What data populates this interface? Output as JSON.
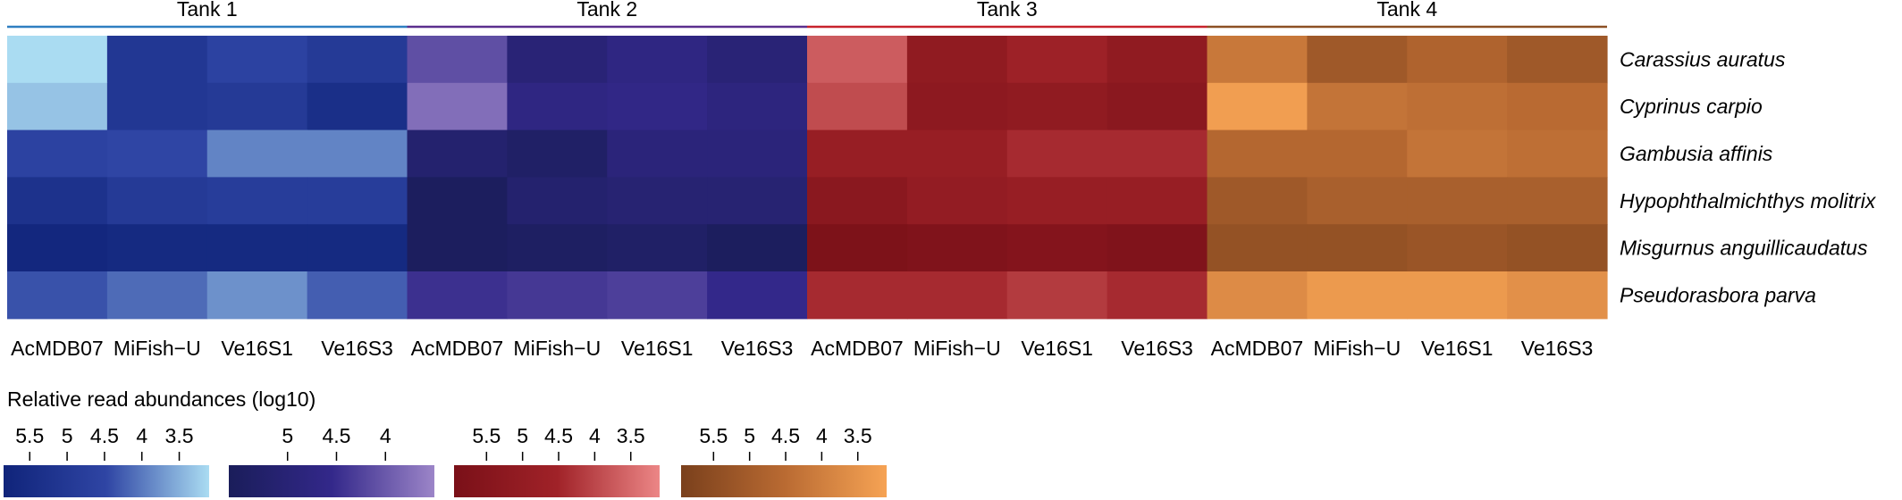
{
  "chart_data": {
    "type": "heatmap",
    "groups": [
      {
        "name": "Tank 1",
        "header_color": "#2f7fc1",
        "colors": [
          "#10247a",
          "#2f45a4",
          "#aadcf2"
        ]
      },
      {
        "name": "Tank 2",
        "header_color": "#5b2f8e",
        "colors": [
          "#1a1d5a",
          "#33288a",
          "#9c85c8"
        ]
      },
      {
        "name": "Tank 3",
        "header_color": "#c8232c",
        "colors": [
          "#7a1018",
          "#a02228",
          "#ec8686"
        ]
      },
      {
        "name": "Tank 4",
        "header_color": "#8c5024",
        "colors": [
          "#7a401c",
          "#b96a32",
          "#f6a354"
        ]
      }
    ],
    "columns": [
      "AcMDB07",
      "MiFish−U",
      "Ve16S1",
      "Ve16S3"
    ],
    "rows": [
      "Carassius auratus",
      "Cyprinus carpio",
      "Gambusia affinis",
      "Hypophthalmichthys molitrix",
      "Misgurnus anguillicaudatus",
      "Pseudorasbora parva"
    ],
    "values": [
      [
        3.3,
        5.0,
        4.6,
        4.9,
        4.0,
        5.0,
        4.7,
        5.0,
        3.8,
        5.0,
        4.6,
        5.0,
        4.2,
        5.0,
        4.7,
        5.0
      ],
      [
        3.5,
        5.0,
        4.9,
        5.3,
        3.6,
        4.7,
        4.6,
        4.8,
        4.0,
        5.1,
        5.0,
        5.2,
        3.4,
        4.3,
        4.4,
        4.5
      ],
      [
        4.6,
        4.5,
        4.0,
        4.0,
        5.2,
        5.4,
        4.9,
        4.9,
        4.8,
        4.8,
        4.4,
        4.4,
        4.6,
        4.6,
        4.3,
        4.4
      ],
      [
        5.2,
        4.9,
        4.8,
        4.8,
        5.6,
        5.2,
        5.1,
        5.1,
        5.2,
        4.9,
        4.8,
        4.8,
        5.0,
        4.8,
        4.8,
        4.8
      ],
      [
        5.6,
        5.5,
        5.5,
        5.5,
        5.6,
        5.5,
        5.4,
        5.6,
        5.6,
        5.5,
        5.4,
        5.5,
        5.2,
        5.2,
        5.1,
        5.2
      ],
      [
        4.4,
        4.2,
        3.9,
        4.3,
        4.4,
        4.3,
        4.2,
        4.5,
        4.4,
        4.4,
        4.2,
        4.4,
        3.8,
        3.5,
        3.5,
        3.7
      ]
    ],
    "legend_title": "Relative read abundances (log10)",
    "legends": [
      {
        "ticks": [
          "5.5",
          "4.5",
          "3.5"
        ],
        "minor_ticks": [
          "5",
          "4"
        ],
        "tick_values": [
          5.5,
          5,
          4.5,
          4,
          3.5
        ],
        "range": [
          5.85,
          3.1
        ]
      },
      {
        "ticks": [
          "5",
          "4.5",
          "4"
        ],
        "tick_values": [
          5,
          4.5,
          4
        ],
        "range": [
          5.6,
          3.5
        ]
      },
      {
        "ticks": [
          "5.5",
          "5",
          "4.5",
          "4",
          "3.5"
        ],
        "tick_values": [
          5.5,
          5,
          4.5,
          4,
          3.5
        ],
        "range": [
          5.95,
          3.1
        ]
      },
      {
        "ticks": [
          "5.5",
          "5",
          "4.5",
          "4",
          "3.5"
        ],
        "tick_values": [
          5.5,
          5,
          4.5,
          4,
          3.5
        ],
        "range": [
          5.95,
          3.1
        ]
      }
    ],
    "legend_tick_labels": [
      [
        "5.5",
        "5",
        "4.5",
        "4",
        "3.5"
      ],
      [
        "5",
        "4.5",
        "4"
      ],
      [
        "5.5",
        "5",
        "4.5",
        "4",
        "3.5"
      ],
      [
        "5.5",
        "5",
        "4.5",
        "4",
        "3.5"
      ]
    ],
    "vmax": 5.7,
    "vmin": 3.3
  }
}
